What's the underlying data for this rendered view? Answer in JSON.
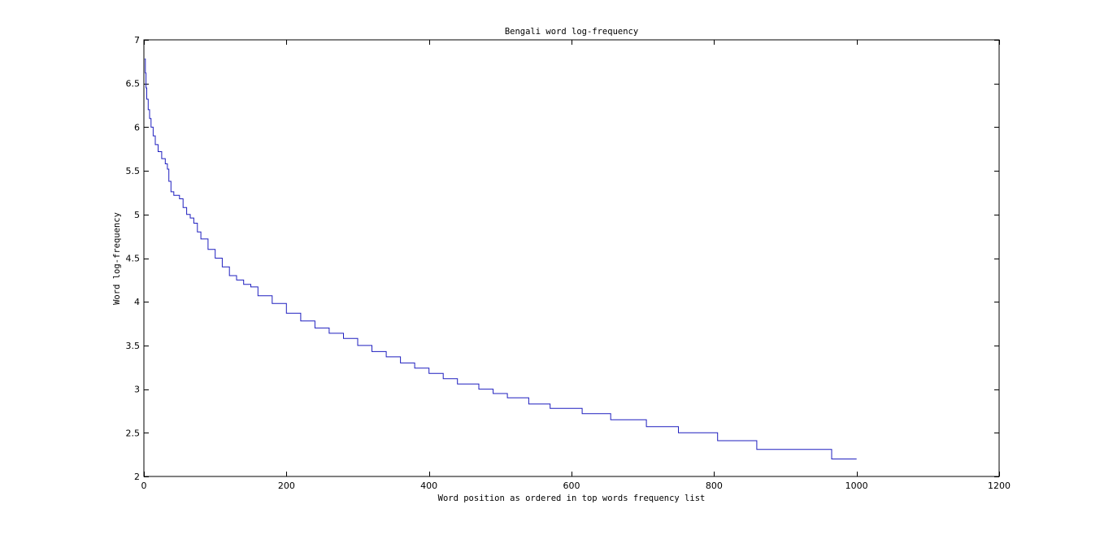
{
  "chart_data": {
    "type": "line",
    "title": "Bengali word log-frequency",
    "xlabel": "Word position as ordered in top words frequency list",
    "ylabel": "Word log-frequency",
    "xlim": [
      0,
      1200
    ],
    "ylim": [
      2,
      7
    ],
    "x_ticks": [
      0,
      200,
      400,
      600,
      800,
      1000,
      1200
    ],
    "y_ticks": [
      2,
      2.5,
      3,
      3.5,
      4,
      4.5,
      5,
      5.5,
      6,
      6.5,
      7
    ],
    "grid": false,
    "series": [
      {
        "color": "#1f1fbf",
        "x": [
          1,
          2,
          3,
          4,
          6,
          8,
          10,
          13,
          16,
          20,
          25,
          30,
          33,
          35,
          38,
          42,
          50,
          55,
          60,
          65,
          70,
          75,
          80,
          90,
          100,
          110,
          120,
          130,
          140,
          150,
          160,
          180,
          200,
          220,
          240,
          260,
          280,
          300,
          320,
          340,
          360,
          380,
          400,
          420,
          440,
          470,
          490,
          510,
          540,
          570,
          615,
          655,
          705,
          750,
          805,
          860,
          965,
          1000
        ],
        "y": [
          6.78,
          6.62,
          6.45,
          6.32,
          6.2,
          6.1,
          6.0,
          5.9,
          5.8,
          5.72,
          5.64,
          5.58,
          5.52,
          5.38,
          5.26,
          5.22,
          5.18,
          5.08,
          5.0,
          4.96,
          4.9,
          4.8,
          4.72,
          4.6,
          4.5,
          4.4,
          4.3,
          4.25,
          4.2,
          4.17,
          4.07,
          3.98,
          3.87,
          3.78,
          3.7,
          3.64,
          3.58,
          3.5,
          3.43,
          3.37,
          3.3,
          3.24,
          3.18,
          3.12,
          3.06,
          3.0,
          2.95,
          2.9,
          2.83,
          2.78,
          2.72,
          2.65,
          2.57,
          2.5,
          2.41,
          2.31,
          2.2,
          2.2
        ]
      }
    ]
  }
}
